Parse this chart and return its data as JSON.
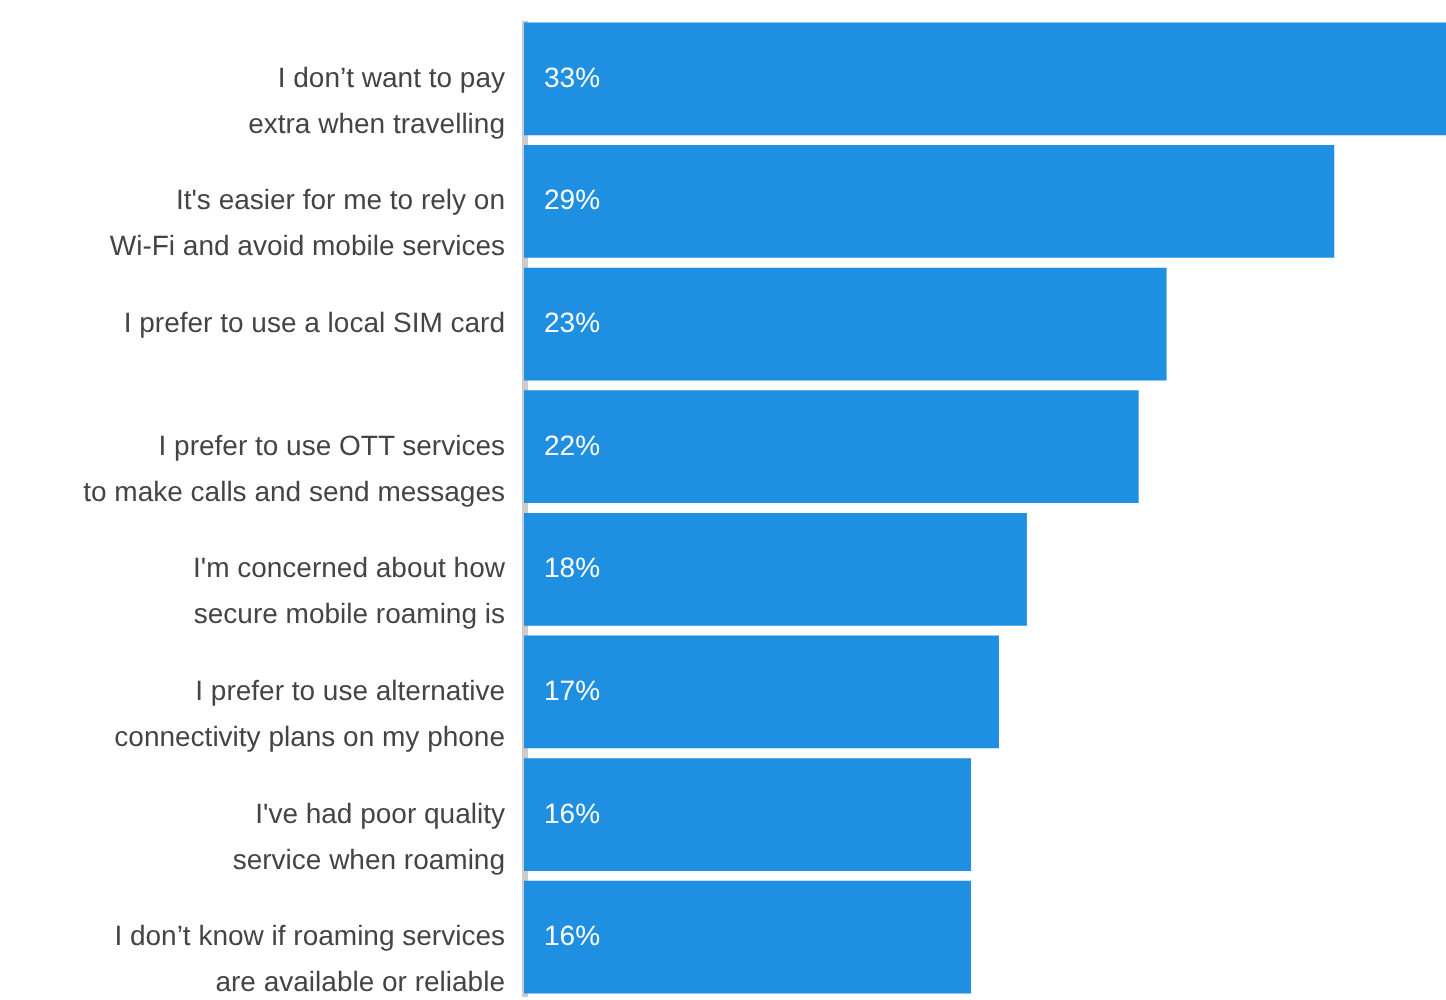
{
  "chart_data": {
    "type": "bar",
    "orientation": "horizontal",
    "categories": [
      "I don’t want to pay extra when travelling",
      "It's easier for me to rely on Wi-Fi and avoid mobile services",
      "I prefer to use a local SIM card",
      "I prefer to use OTT services to make calls and send messages",
      "I'm concerned about how secure mobile roaming is",
      "I prefer to use alternative connectivity plans on my phone",
      "I've had poor quality service when roaming",
      "I don’t know if roaming services are available or reliable"
    ],
    "values": [
      33,
      29,
      23,
      22,
      18,
      17,
      16,
      16
    ],
    "value_labels": [
      "33%",
      "29%",
      "23%",
      "22%",
      "18%",
      "17%",
      "16%",
      "16%"
    ],
    "color": "#1e8fe1"
  }
}
